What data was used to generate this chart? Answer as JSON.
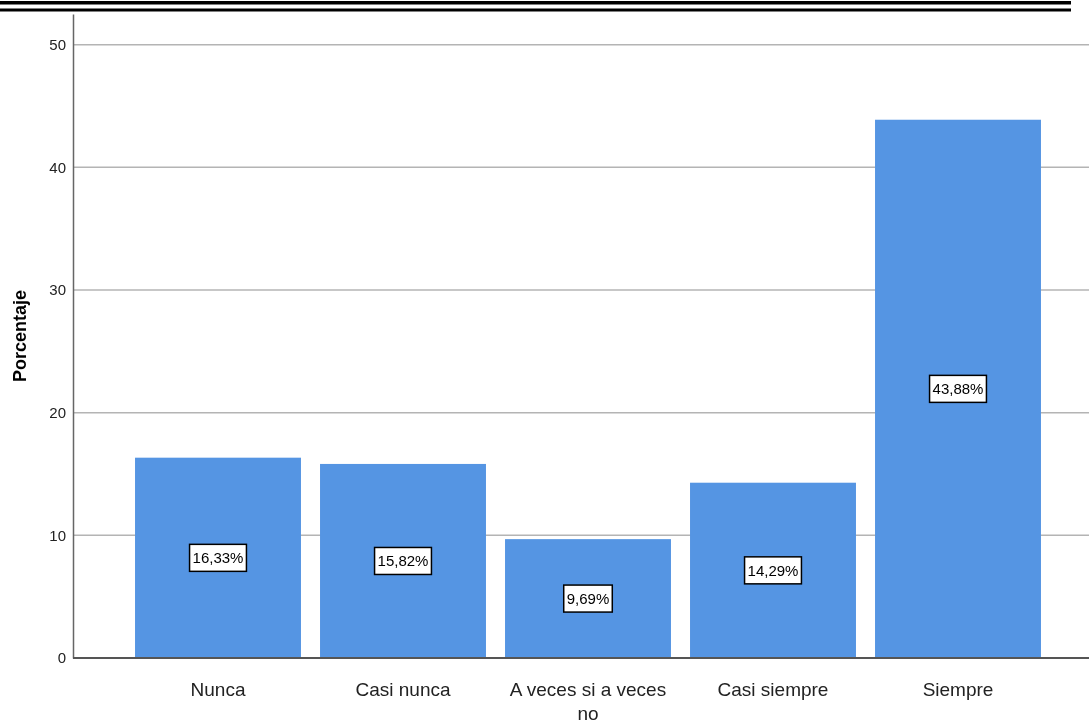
{
  "chart_data": {
    "type": "bar",
    "ylabel": "Porcentaje",
    "categories": [
      "Nunca",
      "Casi nunca",
      "A veces si a veces no",
      "Casi siempre",
      "Siempre"
    ],
    "values": [
      16.33,
      15.82,
      9.69,
      14.29,
      43.88
    ],
    "color": "#5595e3",
    "value_labels": [
      "16,33%",
      "15,82%",
      "9,69%",
      "14,29%",
      "43,88%"
    ],
    "ylim": [
      0,
      52.5
    ],
    "yticks": [
      0,
      10,
      20,
      30,
      40,
      50
    ],
    "grid": "y"
  }
}
